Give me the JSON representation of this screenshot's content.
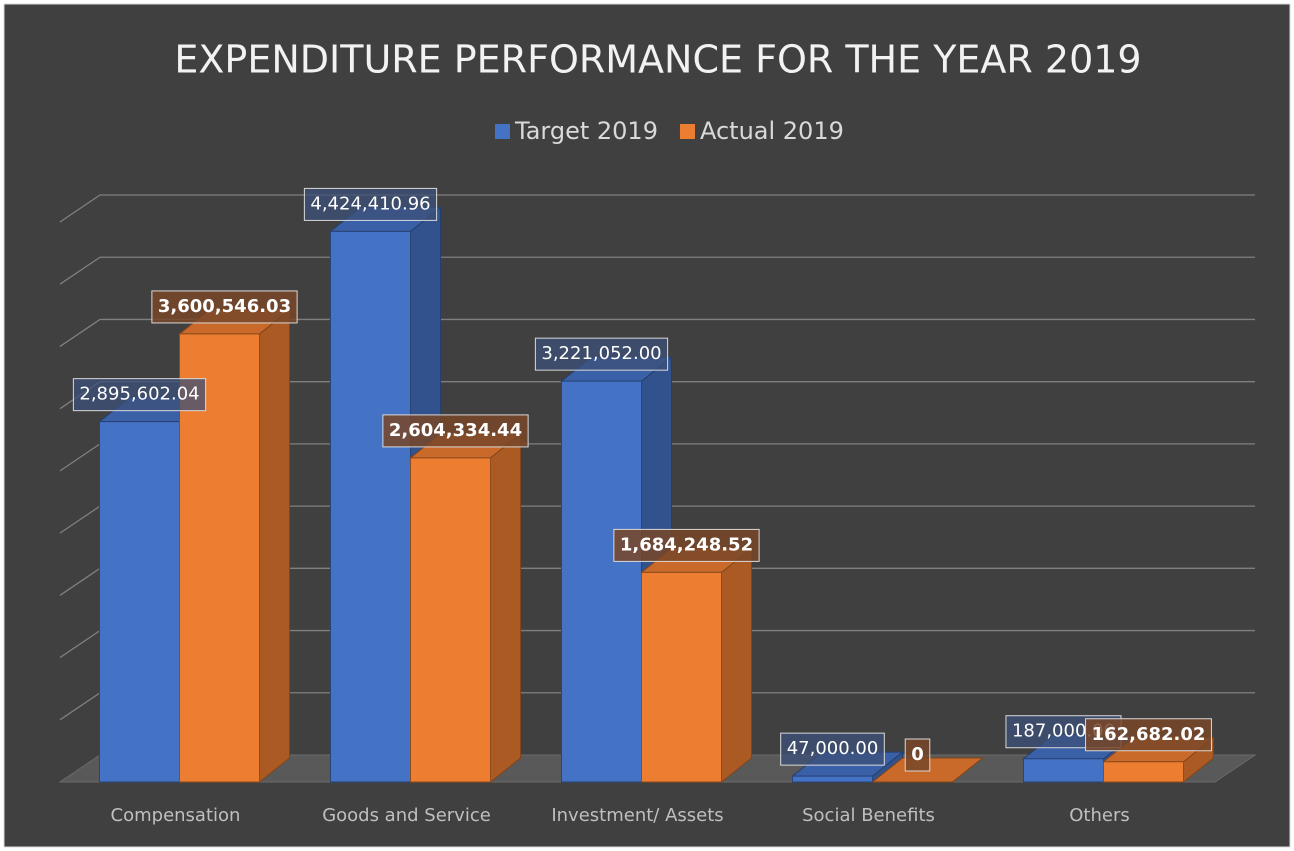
{
  "chart_data": {
    "type": "bar3d",
    "title": "EXPENDITURE PERFORMANCE FOR THE YEAR 2019",
    "categories": [
      "Compensation",
      "Goods and Service",
      "Investment/ Assets",
      "Social Benefits",
      "Others"
    ],
    "series": [
      {
        "name": "Target 2019",
        "color": "#4472c4",
        "values": [
          2895602.04,
          4424410.96,
          3221052.0,
          47000.0,
          187000.0
        ],
        "value_labels": [
          "2,895,602.04",
          "4,424,410.96",
          "3,221,052.00",
          "47,000.00",
          "187,000.00"
        ]
      },
      {
        "name": "Actual 2019",
        "color": "#ed7d31",
        "values": [
          3600546.03,
          2604334.44,
          1684248.52,
          0,
          162682.02
        ],
        "value_labels": [
          "3,600,546.03",
          "2,604,334.44",
          "1,684,248.52",
          "0",
          "162,682.02"
        ]
      }
    ],
    "ylim": [
      0,
      4500000
    ],
    "yticks": [
      0,
      500000,
      1000000,
      1500000,
      2000000,
      2500000,
      3000000,
      3500000,
      4000000,
      4500000
    ],
    "grid": true
  }
}
